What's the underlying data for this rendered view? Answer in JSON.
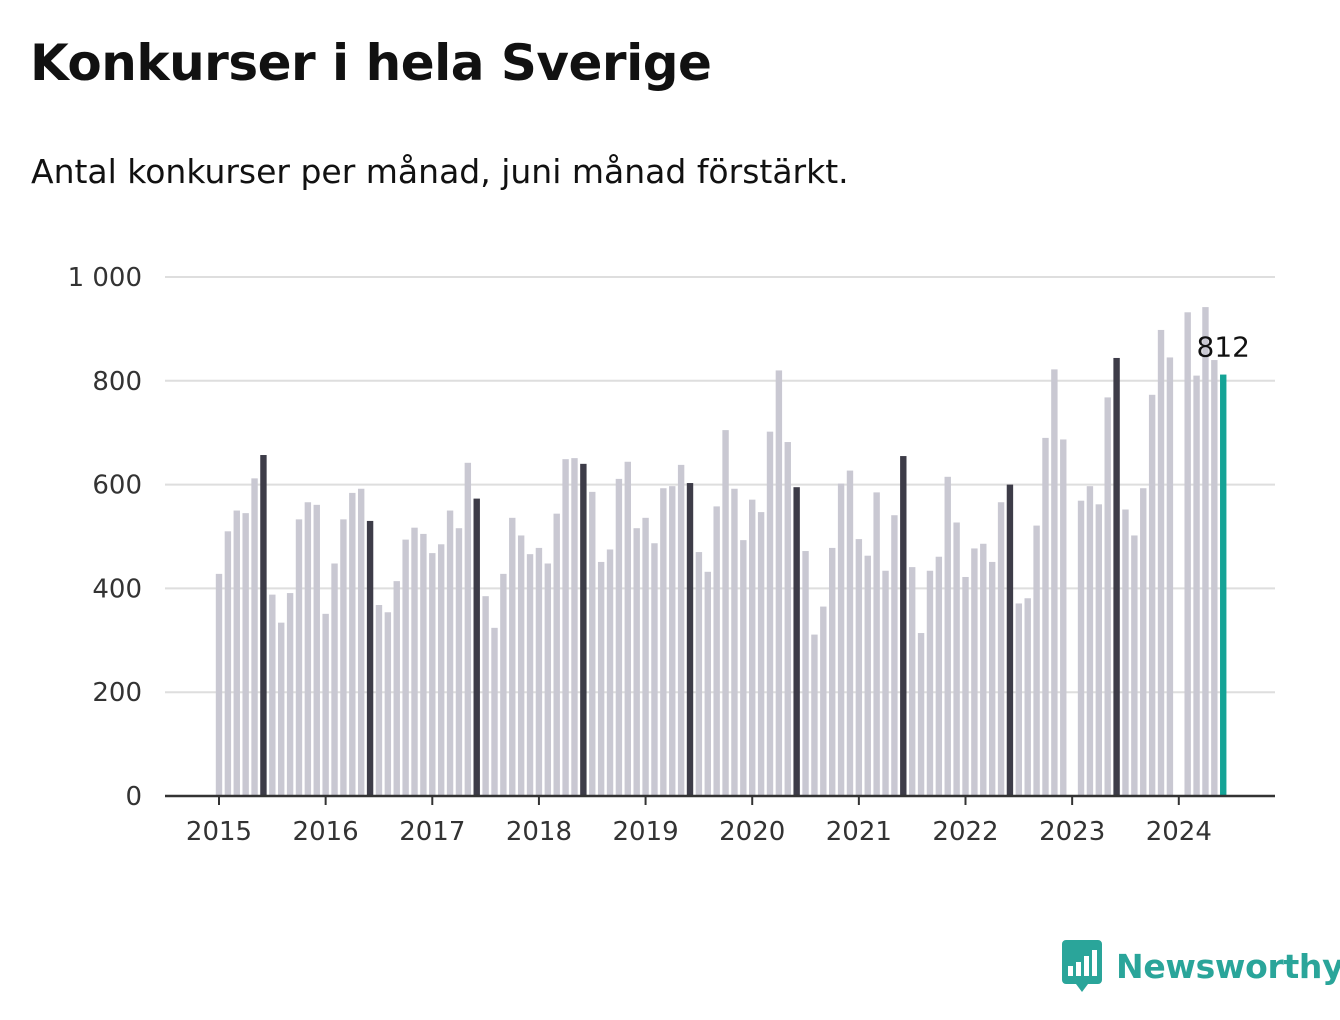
{
  "header": {
    "title": "Konkurser i hela Sverige",
    "subtitle": "Antal konkurser per månad, juni månad förstärkt."
  },
  "brand": {
    "name": "Newsworthy",
    "icon": "newsworthy-logo-icon",
    "color": "#2aa59a"
  },
  "colors": {
    "bar": "#c9c8d2",
    "june": "#3d3c48",
    "latest": "#14a396",
    "grid": "#dedede",
    "axis": "#333333"
  },
  "chart_data": {
    "type": "bar",
    "title": "Konkurser i hela Sverige",
    "subtitle": "Antal konkurser per månad, juni månad förstärkt.",
    "xlabel": "",
    "ylabel": "",
    "ylim": [
      0,
      1000
    ],
    "yticks": [
      0,
      200,
      400,
      600,
      800,
      1000
    ],
    "ytick_labels": [
      "0",
      "200",
      "400",
      "600",
      "800",
      "1 000"
    ],
    "xtick_labels": [
      "2015",
      "2016",
      "2017",
      "2018",
      "2019",
      "2020",
      "2021",
      "2022",
      "2023",
      "2024"
    ],
    "grid": true,
    "legend": "none",
    "start": "2015-01",
    "end": "2024-06",
    "highlight_month": "juni",
    "annotation": {
      "month": "2024-06",
      "text": "812"
    },
    "series": [
      {
        "values": [
          428,
          510,
          550,
          545,
          612,
          657,
          388,
          334,
          391,
          533,
          566,
          561,
          351,
          448,
          533,
          584,
          592,
          530,
          368,
          354,
          414,
          494,
          517,
          505,
          468,
          485,
          550,
          516,
          642,
          573,
          385,
          324,
          428,
          536,
          502,
          466,
          478,
          448,
          544,
          649,
          651,
          640,
          586,
          451,
          475,
          611,
          644,
          516,
          536,
          487,
          593,
          597,
          638,
          603,
          470,
          432,
          558,
          705,
          592,
          493,
          571,
          547,
          702,
          820,
          682,
          595,
          472,
          311,
          365,
          478,
          602,
          627,
          495,
          463,
          585,
          434,
          541,
          655,
          441,
          314,
          434,
          461,
          615,
          527,
          422,
          477,
          486,
          451,
          566,
          600,
          371,
          381,
          521,
          690,
          822,
          687,
          null,
          569,
          597,
          562,
          768,
          844,
          552,
          502,
          593,
          773,
          898,
          845,
          null,
          932,
          810,
          942,
          840,
          812
        ]
      }
    ]
  }
}
